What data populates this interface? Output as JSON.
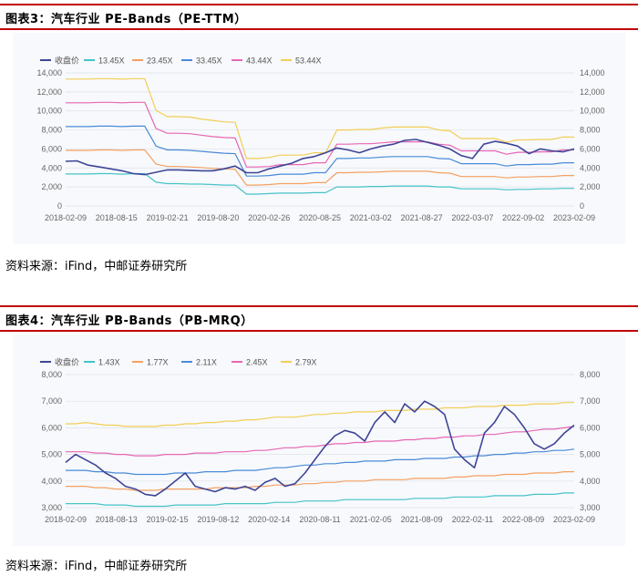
{
  "fig1": {
    "title": "图表3：汽车行业 PE-Bands（PE-TTM）",
    "source": "资料来源：iFind，中邮证券研究所"
  },
  "fig2": {
    "title": "图表4：汽车行业 PB-Bands（PB-MRQ）",
    "source": "资料来源：iFind，中邮证券研究所"
  },
  "chart_data": [
    {
      "type": "line",
      "ytick_labels": [
        "0",
        "2,000",
        "4,000",
        "6,000",
        "8,000",
        "10,000",
        "12,000",
        "14,000"
      ],
      "xtick_labels": [
        "2018-02-09",
        "2018-08-15",
        "2019-02-21",
        "2019-08-20",
        "2020-02-26",
        "2020-08-25",
        "2021-03-02",
        "2021-08-27",
        "2022-03-07",
        "2022-09-02",
        "2023-02-09"
      ],
      "ylim": [
        0,
        14000
      ],
      "legend_position": "top-left",
      "grid": true,
      "series": [
        {
          "name": "收盘价",
          "color": "#3f4596",
          "width": 1.6,
          "values": [
            4700,
            4750,
            4300,
            4100,
            3900,
            3700,
            3400,
            3300,
            3550,
            3800,
            3800,
            3750,
            3700,
            3700,
            3900,
            4200,
            3500,
            3500,
            3900,
            4200,
            4500,
            5000,
            5200,
            5600,
            6100,
            5900,
            5600,
            6000,
            6300,
            6500,
            6900,
            7000,
            6700,
            6400,
            6000,
            5300,
            5000,
            6500,
            6800,
            6600,
            6300,
            5500,
            6000,
            5800,
            5700,
            6000
          ]
        },
        {
          "name": "13.45X",
          "color": "#46c3c8",
          "width": 1.2,
          "values": [
            3370,
            3370,
            3370,
            3400,
            3400,
            3350,
            3400,
            3400,
            2500,
            2350,
            2350,
            2300,
            2300,
            2250,
            2200,
            2200,
            1250,
            1250,
            1300,
            1350,
            1350,
            1350,
            1400,
            1400,
            2000,
            2000,
            2000,
            2050,
            2050,
            2100,
            2100,
            2100,
            2100,
            2000,
            2000,
            1800,
            1800,
            1800,
            1800,
            1700,
            1750,
            1750,
            1800,
            1800,
            1850,
            1850
          ]
        },
        {
          "name": "23.45X",
          "color": "#f4a061",
          "width": 1.2,
          "values": [
            5850,
            5850,
            5850,
            5900,
            5900,
            5850,
            5900,
            5900,
            4400,
            4150,
            4150,
            4100,
            4050,
            3950,
            3900,
            3850,
            2200,
            2200,
            2250,
            2350,
            2350,
            2350,
            2450,
            2450,
            3500,
            3500,
            3550,
            3550,
            3600,
            3650,
            3650,
            3650,
            3650,
            3500,
            3450,
            3100,
            3100,
            3100,
            3100,
            2950,
            3050,
            3050,
            3100,
            3100,
            3200,
            3200
          ]
        },
        {
          "name": "33.45X",
          "color": "#4a8ad6",
          "width": 1.2,
          "values": [
            8350,
            8350,
            8350,
            8400,
            8400,
            8350,
            8400,
            8400,
            6300,
            5900,
            5900,
            5850,
            5750,
            5650,
            5550,
            5500,
            3150,
            3150,
            3200,
            3350,
            3350,
            3350,
            3500,
            3500,
            5000,
            5000,
            5050,
            5050,
            5150,
            5200,
            5200,
            5200,
            5200,
            5000,
            4950,
            4450,
            4450,
            4450,
            4450,
            4200,
            4350,
            4350,
            4400,
            4400,
            4550,
            4550
          ]
        },
        {
          "name": "43.44X",
          "color": "#e766b5",
          "width": 1.2,
          "values": [
            10850,
            10850,
            10850,
            10900,
            10900,
            10850,
            10900,
            10900,
            8150,
            7650,
            7650,
            7600,
            7450,
            7300,
            7200,
            7150,
            4100,
            4100,
            4150,
            4350,
            4350,
            4350,
            4550,
            4550,
            6500,
            6500,
            6550,
            6550,
            6650,
            6750,
            6750,
            6750,
            6750,
            6500,
            6400,
            5800,
            5800,
            5800,
            5800,
            5450,
            5650,
            5650,
            5700,
            5700,
            5900,
            5900
          ]
        },
        {
          "name": "53.44X",
          "color": "#f3ce55",
          "width": 1.2,
          "values": [
            13350,
            13350,
            13350,
            13400,
            13400,
            13350,
            13400,
            13400,
            10050,
            9400,
            9400,
            9350,
            9150,
            9000,
            8850,
            8800,
            5000,
            5000,
            5100,
            5350,
            5350,
            5350,
            5600,
            5600,
            8000,
            8000,
            8050,
            8050,
            8200,
            8300,
            8300,
            8300,
            8300,
            8000,
            7900,
            7100,
            7100,
            7100,
            7100,
            6700,
            6950,
            6950,
            7000,
            7000,
            7250,
            7250
          ]
        }
      ]
    },
    {
      "type": "line",
      "ytick_labels": [
        "3,000",
        "4,000",
        "5,000",
        "6,000",
        "7,000",
        "8,000"
      ],
      "xtick_labels": [
        "2018-02-09",
        "2018-08-13",
        "2019-02-15",
        "2019-08-12",
        "2020-02-14",
        "2020-08-11",
        "2021-02-05",
        "2021-08-09",
        "2022-02-11",
        "2022-08-09",
        "2023-02-09"
      ],
      "ylim": [
        3000,
        8000
      ],
      "legend_position": "top-left",
      "grid": true,
      "series": [
        {
          "name": "收盘价",
          "color": "#3f4596",
          "width": 1.6,
          "values": [
            4700,
            5000,
            4800,
            4600,
            4300,
            4100,
            3800,
            3700,
            3500,
            3450,
            3700,
            4000,
            4300,
            3800,
            3700,
            3600,
            3750,
            3700,
            3800,
            3650,
            3950,
            4100,
            3800,
            3900,
            4300,
            4800,
            5300,
            5700,
            5900,
            5800,
            5500,
            6200,
            6600,
            6200,
            6900,
            6600,
            7000,
            6800,
            6500,
            5200,
            4800,
            4500,
            5800,
            6200,
            6800,
            6500,
            6000,
            5400,
            5200,
            5400,
            5800,
            6100
          ]
        },
        {
          "name": "1.43X",
          "color": "#46c3c8",
          "width": 1.2,
          "values": [
            3150,
            3150,
            3150,
            3150,
            3100,
            3100,
            3100,
            3050,
            3050,
            3050,
            3050,
            3100,
            3100,
            3100,
            3100,
            3100,
            3150,
            3150,
            3150,
            3150,
            3150,
            3200,
            3200,
            3200,
            3250,
            3250,
            3250,
            3250,
            3300,
            3300,
            3300,
            3300,
            3300,
            3300,
            3300,
            3350,
            3350,
            3350,
            3350,
            3400,
            3400,
            3400,
            3400,
            3450,
            3450,
            3450,
            3450,
            3500,
            3500,
            3500,
            3550,
            3550
          ]
        },
        {
          "name": "1.77X",
          "color": "#f4a061",
          "width": 1.2,
          "values": [
            3800,
            3800,
            3800,
            3750,
            3750,
            3700,
            3700,
            3650,
            3650,
            3650,
            3700,
            3700,
            3700,
            3700,
            3700,
            3750,
            3750,
            3750,
            3750,
            3800,
            3800,
            3850,
            3850,
            3850,
            3900,
            3900,
            3950,
            3950,
            4000,
            4000,
            4000,
            4050,
            4050,
            4050,
            4050,
            4100,
            4100,
            4100,
            4100,
            4150,
            4150,
            4200,
            4200,
            4200,
            4250,
            4250,
            4250,
            4300,
            4300,
            4300,
            4350,
            4350
          ]
        },
        {
          "name": "2.11X",
          "color": "#4a8ad6",
          "width": 1.2,
          "values": [
            4400,
            4400,
            4400,
            4350,
            4350,
            4300,
            4300,
            4250,
            4250,
            4250,
            4250,
            4300,
            4300,
            4300,
            4350,
            4350,
            4350,
            4400,
            4400,
            4400,
            4450,
            4500,
            4500,
            4550,
            4600,
            4600,
            4650,
            4650,
            4700,
            4700,
            4750,
            4750,
            4750,
            4800,
            4800,
            4800,
            4850,
            4850,
            4850,
            4900,
            4900,
            4950,
            4950,
            5000,
            5000,
            5050,
            5050,
            5100,
            5100,
            5150,
            5150,
            5200
          ]
        },
        {
          "name": "2.45X",
          "color": "#e766b5",
          "width": 1.2,
          "values": [
            5100,
            5100,
            5100,
            5050,
            5050,
            5000,
            5000,
            4950,
            4950,
            4950,
            5000,
            5000,
            5000,
            5050,
            5050,
            5050,
            5100,
            5100,
            5100,
            5150,
            5150,
            5200,
            5250,
            5250,
            5300,
            5300,
            5350,
            5400,
            5400,
            5450,
            5450,
            5500,
            5500,
            5500,
            5550,
            5550,
            5600,
            5600,
            5650,
            5650,
            5700,
            5700,
            5750,
            5750,
            5800,
            5850,
            5850,
            5900,
            5950,
            5950,
            6000,
            6050
          ]
        },
        {
          "name": "2.79X",
          "color": "#f3ce55",
          "width": 1.2,
          "values": [
            6150,
            6150,
            6200,
            6150,
            6100,
            6100,
            6050,
            6050,
            6050,
            6050,
            6100,
            6100,
            6150,
            6150,
            6200,
            6200,
            6250,
            6250,
            6300,
            6300,
            6350,
            6400,
            6400,
            6400,
            6450,
            6500,
            6500,
            6550,
            6550,
            6600,
            6600,
            6600,
            6650,
            6650,
            6650,
            6700,
            6700,
            6700,
            6750,
            6750,
            6750,
            6800,
            6800,
            6800,
            6850,
            6850,
            6850,
            6900,
            6900,
            6900,
            6950,
            6950
          ]
        }
      ]
    }
  ]
}
